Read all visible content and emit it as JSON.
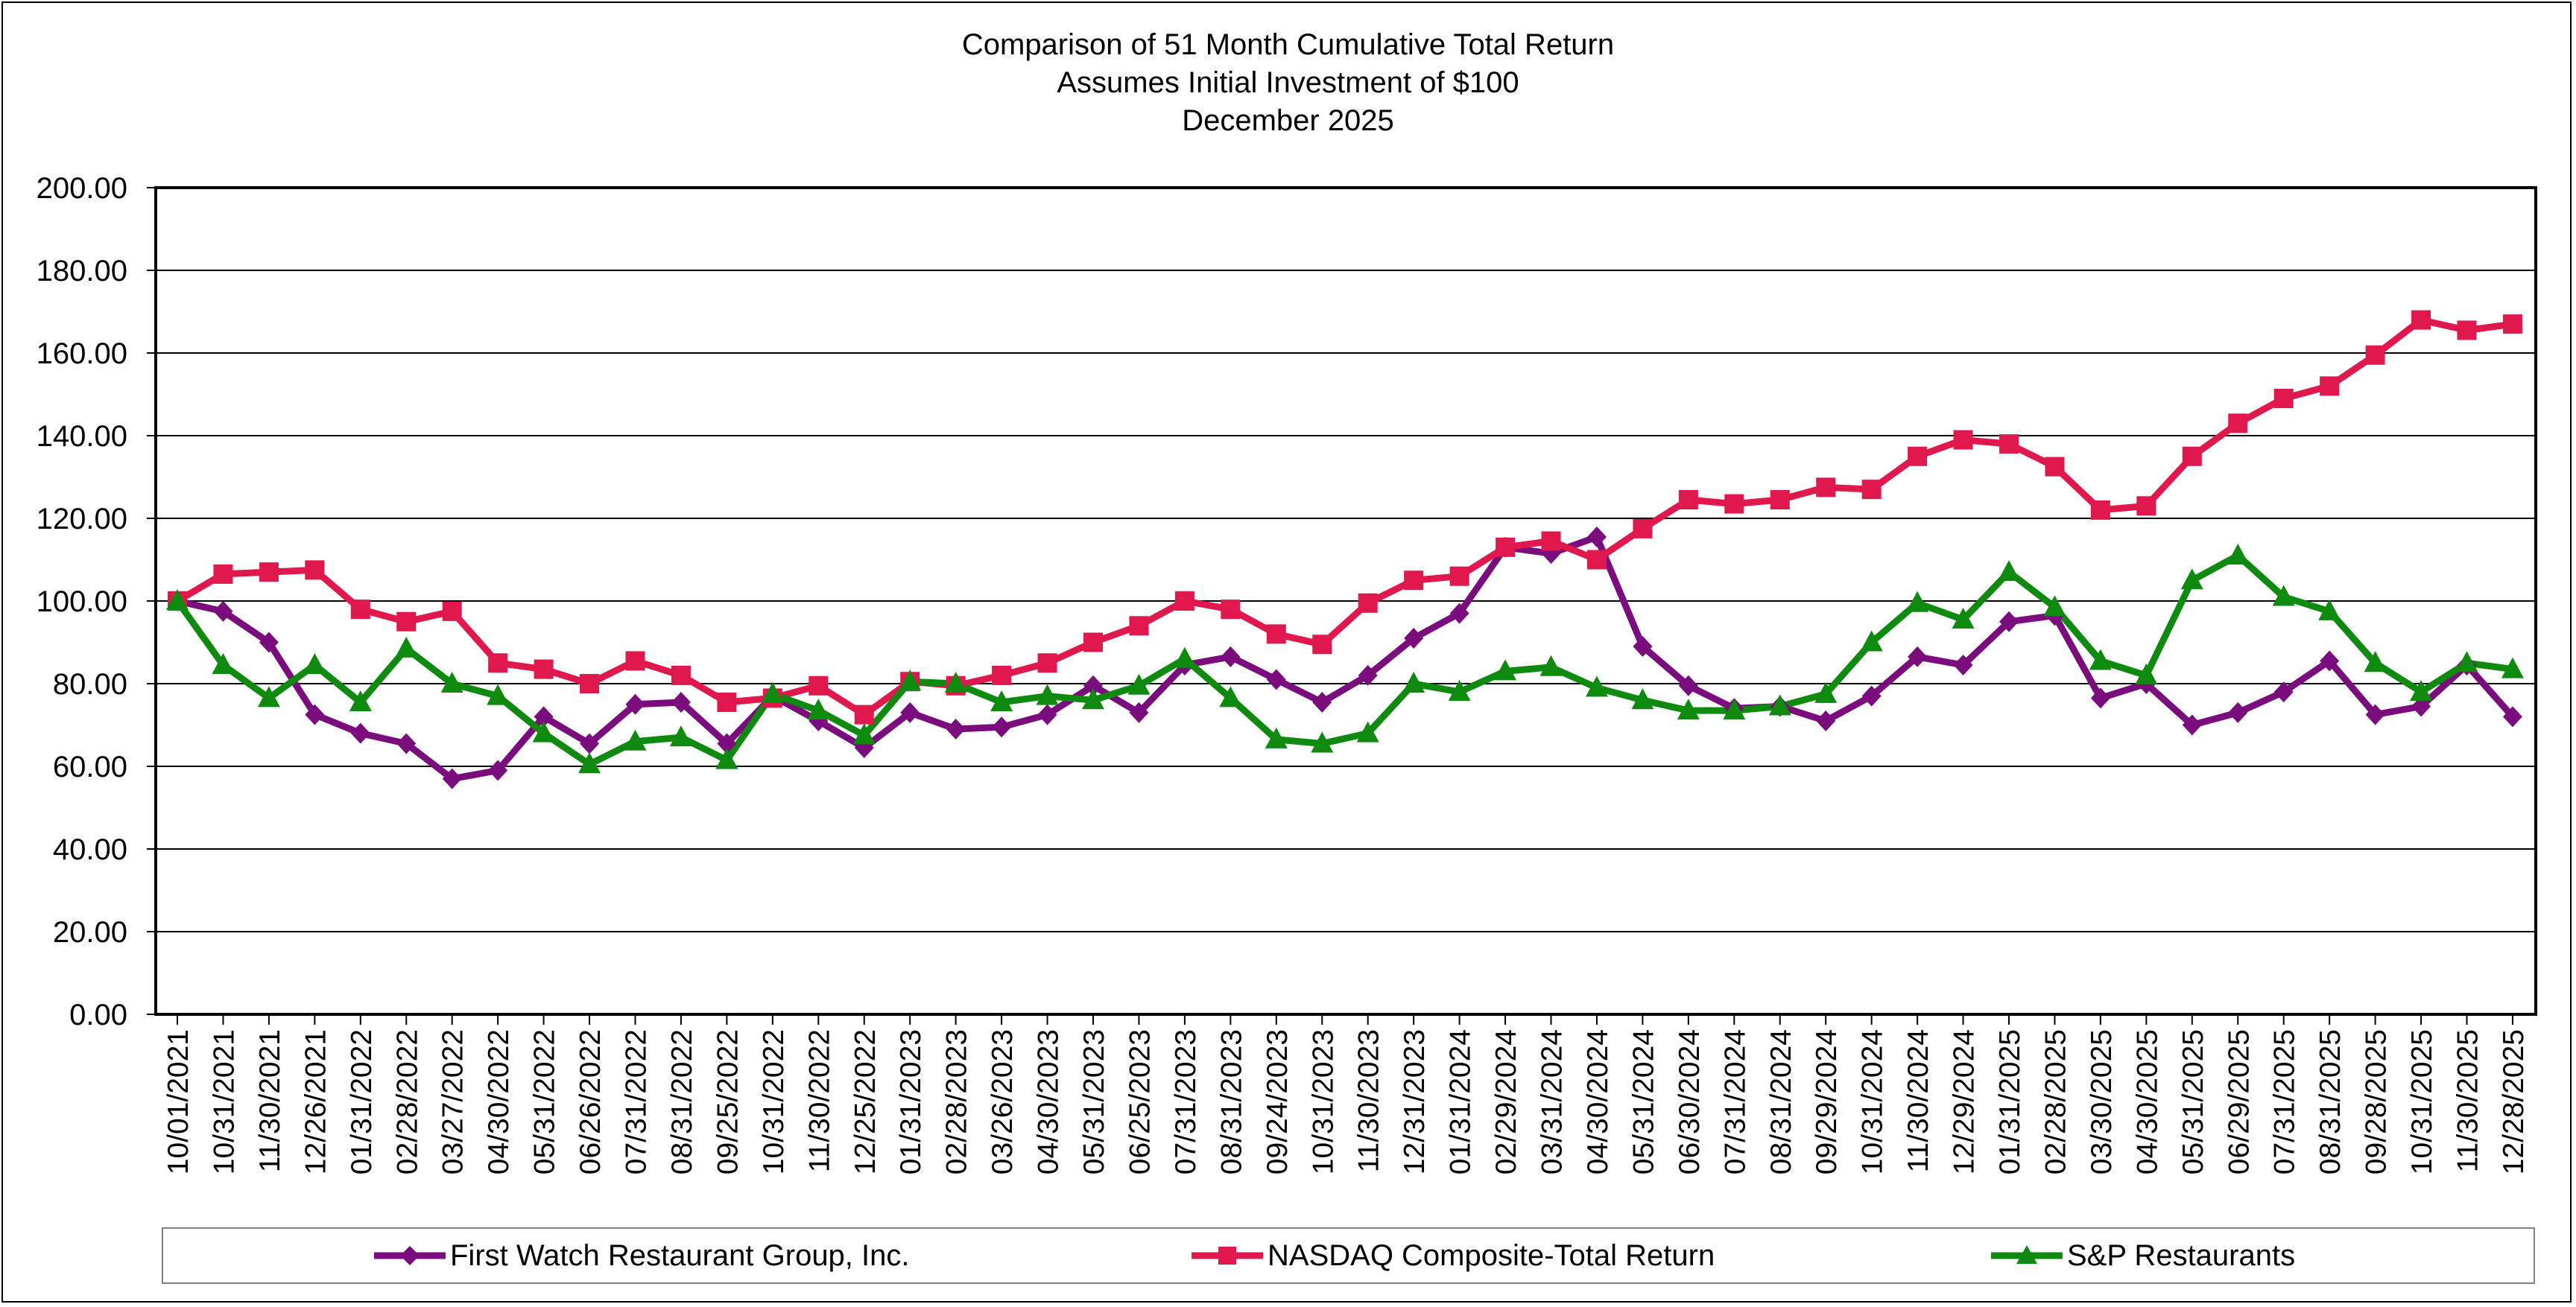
{
  "chart_data": {
    "type": "line",
    "title": [
      "Comparison of 51 Month Cumulative Total Return",
      "Assumes Initial Investment of $100",
      "December 2025"
    ],
    "xlabel": "",
    "ylabel": "",
    "ylim": [
      0,
      200
    ],
    "yticks": [
      0,
      20,
      40,
      60,
      80,
      100,
      120,
      140,
      160,
      180,
      200
    ],
    "ytick_labels": [
      "0.00",
      "20.00",
      "40.00",
      "60.00",
      "80.00",
      "100.00",
      "120.00",
      "140.00",
      "160.00",
      "180.00",
      "200.00"
    ],
    "grid": true,
    "legend_position": "bottom",
    "categories": [
      "10/01/2021",
      "10/31/2021",
      "11/30/2021",
      "12/26/2021",
      "01/31/2022",
      "02/28/2022",
      "03/27/2022",
      "04/30/2022",
      "05/31/2022",
      "06/26/2022",
      "07/31/2022",
      "08/31/2022",
      "09/25/2022",
      "10/31/2022",
      "11/30/2022",
      "12/25/2022",
      "01/31/2023",
      "02/28/2023",
      "03/26/2023",
      "04/30/2023",
      "05/31/2023",
      "06/25/2023",
      "07/31/2023",
      "08/31/2023",
      "09/24/2023",
      "10/31/2023",
      "11/30/2023",
      "12/31/2023",
      "01/31/2024",
      "02/29/2024",
      "03/31/2024",
      "04/30/2024",
      "05/31/2024",
      "06/30/2024",
      "07/31/2024",
      "08/31/2024",
      "09/29/2024",
      "10/31/2024",
      "11/30/2024",
      "12/29/2024",
      "01/31/2025",
      "02/28/2025",
      "03/30/2025",
      "04/30/2025",
      "05/31/2025",
      "06/29/2025",
      "07/31/2025",
      "08/31/2025",
      "09/28/2025",
      "10/31/2025",
      "11/30/2025",
      "12/28/2025"
    ],
    "series": [
      {
        "name": "First Watch Restaurant Group, Inc.",
        "color": "#7B0C7E",
        "marker": "diamond",
        "values": [
          100,
          97.5,
          90,
          72.5,
          68,
          65.5,
          57,
          59,
          72,
          65.5,
          75,
          75.5,
          65.5,
          77,
          71,
          64.5,
          73,
          69,
          69.5,
          72.5,
          79.5,
          73,
          84.5,
          86.5,
          81,
          75.5,
          82,
          91,
          97,
          113,
          111.5,
          115.5,
          89,
          79.5,
          74,
          74.5,
          71,
          77,
          86.5,
          84.5,
          95,
          96.5,
          76.5,
          80,
          70,
          73,
          78,
          85.5,
          72.5,
          74.5,
          84.5,
          72
        ]
      },
      {
        "name": "NASDAQ Composite-Total Return",
        "color": "#E0184E",
        "marker": "square",
        "values": [
          100,
          106.5,
          107,
          107.5,
          98,
          95,
          97.5,
          85,
          83.5,
          80,
          85.5,
          82,
          75.5,
          76.5,
          79.5,
          72.5,
          80.5,
          79.5,
          82,
          85,
          90,
          94,
          100,
          98,
          92,
          89.5,
          99.5,
          105,
          106,
          113,
          114.5,
          110,
          117.5,
          124.5,
          123.5,
          124.5,
          127.5,
          127,
          135,
          139,
          138,
          132.5,
          122,
          123,
          135,
          143,
          149,
          152,
          159.5,
          168,
          165.5,
          167
        ]
      },
      {
        "name": "S&P Restaurants",
        "color": "#0E8A0E",
        "marker": "triangle",
        "values": [
          100,
          84.5,
          76.5,
          84.5,
          75.5,
          88.5,
          80,
          77,
          68,
          60.5,
          66,
          67,
          61.5,
          77.5,
          73.5,
          67.5,
          80.5,
          80,
          75.5,
          77,
          76,
          79.5,
          86,
          76.5,
          66.5,
          65.5,
          68,
          80,
          78,
          83,
          84,
          79,
          76,
          73.5,
          73.5,
          74.5,
          77.5,
          90,
          99.5,
          95.5,
          107,
          98.5,
          85.5,
          82,
          105,
          111,
          101,
          97.5,
          85,
          78,
          85,
          83.5
        ]
      }
    ]
  }
}
